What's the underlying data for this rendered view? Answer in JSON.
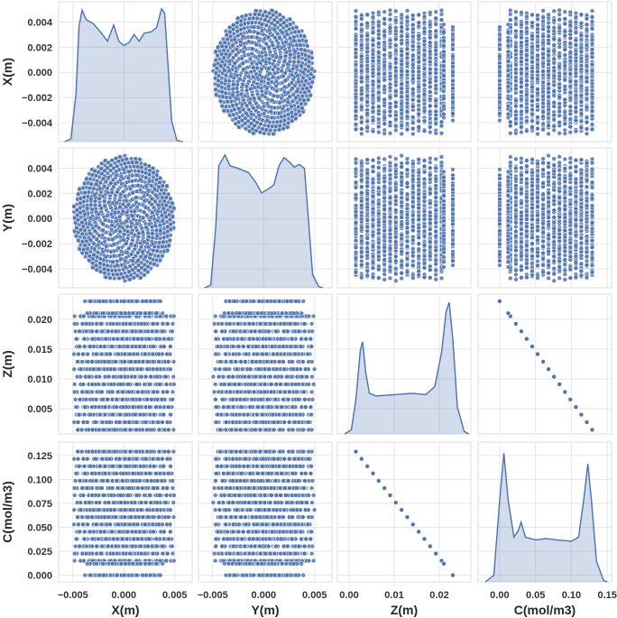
{
  "chart_data": {
    "type": "pairplot",
    "variables": [
      "X(m)",
      "Y(m)",
      "Z(m)",
      "C(mol/m3)"
    ],
    "grid": true,
    "color": "#4c72b0",
    "axes": {
      "X(m)": {
        "ticks": [
          -0.004,
          -0.002,
          0.0,
          0.002,
          0.004
        ],
        "tick_labels": [
          "−0.004",
          "−0.002",
          "0.000",
          "0.002",
          "0.004"
        ],
        "col_ticks": [
          -0.005,
          0.0,
          0.005
        ],
        "col_tick_labels": [
          "−0.005",
          "0.000",
          "0.005"
        ],
        "row_range": [
          -0.0055,
          0.0056
        ],
        "col_range": [
          -0.0064,
          0.0067
        ]
      },
      "Y(m)": {
        "ticks": [
          -0.004,
          -0.002,
          0.0,
          0.002,
          0.004
        ],
        "tick_labels": [
          "−0.004",
          "−0.002",
          "0.000",
          "0.002",
          "0.004"
        ],
        "col_ticks": [
          -0.005,
          0.0,
          0.005
        ],
        "col_tick_labels": [
          "−0.005",
          "0.000",
          "0.005"
        ],
        "row_range": [
          -0.0055,
          0.0056
        ],
        "col_range": [
          -0.0064,
          0.0067
        ]
      },
      "Z(m)": {
        "ticks": [
          0.005,
          0.01,
          0.015,
          0.02
        ],
        "tick_labels": [
          "0.005",
          "0.010",
          "0.015",
          "0.020"
        ],
        "col_ticks": [
          0.0,
          0.01,
          0.02
        ],
        "col_tick_labels": [
          "0.00",
          "0.01",
          "0.02"
        ],
        "row_range": [
          0.0008,
          0.0242
        ],
        "col_range": [
          -0.0026,
          0.027
        ]
      },
      "C(mol/m3)": {
        "ticks": [
          0.0,
          0.025,
          0.05,
          0.075,
          0.1,
          0.125
        ],
        "tick_labels": [
          "0.000",
          "0.025",
          "0.050",
          "0.075",
          "0.100",
          "0.125"
        ],
        "col_ticks": [
          0.0,
          0.05,
          0.1,
          0.15
        ],
        "col_tick_labels": [
          "0.00",
          "0.05",
          "0.10",
          "0.15"
        ],
        "row_range": [
          -0.007,
          0.139
        ],
        "col_range": [
          -0.03,
          0.156
        ]
      }
    },
    "scatter_model": {
      "radius_main": 0.005,
      "z_main": [
        0.0015,
        0.0205
      ],
      "radius_top": 0.0039,
      "z_top": [
        0.021,
        0.023
      ],
      "c_at_z": [
        [
          0.002,
          0.126
        ],
        [
          0.023,
          0.0
        ]
      ]
    },
    "kde": {
      "X(m)": [
        [
          -0.0058,
          0
        ],
        [
          -0.0052,
          0.02
        ],
        [
          -0.0047,
          0.35
        ],
        [
          -0.0044,
          0.85
        ],
        [
          -0.0041,
          0.97
        ],
        [
          -0.0037,
          0.9
        ],
        [
          -0.003,
          0.87
        ],
        [
          -0.0022,
          0.8
        ],
        [
          -0.0016,
          0.74
        ],
        [
          -0.001,
          0.86
        ],
        [
          -0.0005,
          0.74
        ],
        [
          0,
          0.71
        ],
        [
          0.0005,
          0.73
        ],
        [
          0.001,
          0.79
        ],
        [
          0.0015,
          0.74
        ],
        [
          0.002,
          0.8
        ],
        [
          0.0027,
          0.81
        ],
        [
          0.0032,
          0.84
        ],
        [
          0.0037,
          0.98
        ],
        [
          0.004,
          0.95
        ],
        [
          0.0043,
          0.6
        ],
        [
          0.0047,
          0.15
        ],
        [
          0.0052,
          0.01
        ],
        [
          0.0058,
          0
        ]
      ],
      "Y(m)": [
        [
          -0.0058,
          0
        ],
        [
          -0.0052,
          0.02
        ],
        [
          -0.0047,
          0.45
        ],
        [
          -0.0044,
          0.9
        ],
        [
          -0.0038,
          0.98
        ],
        [
          -0.0033,
          0.9
        ],
        [
          -0.0025,
          0.88
        ],
        [
          -0.0015,
          0.85
        ],
        [
          -0.0008,
          0.78
        ],
        [
          -0.0002,
          0.7
        ],
        [
          0.0005,
          0.73
        ],
        [
          0.001,
          0.76
        ],
        [
          0.0015,
          0.9
        ],
        [
          0.002,
          0.96
        ],
        [
          0.0025,
          0.93
        ],
        [
          0.003,
          0.89
        ],
        [
          0.0035,
          0.91
        ],
        [
          0.004,
          0.88
        ],
        [
          0.0044,
          0.5
        ],
        [
          0.0048,
          0.1
        ],
        [
          0.0054,
          0.01
        ],
        [
          0.0058,
          0
        ]
      ],
      "Z(m)": [
        [
          -0.001,
          0
        ],
        [
          0.0005,
          0.03
        ],
        [
          0.0015,
          0.25
        ],
        [
          0.0025,
          0.62
        ],
        [
          0.003,
          0.68
        ],
        [
          0.0037,
          0.45
        ],
        [
          0.0045,
          0.3
        ],
        [
          0.006,
          0.28
        ],
        [
          0.01,
          0.29
        ],
        [
          0.014,
          0.3
        ],
        [
          0.017,
          0.29
        ],
        [
          0.019,
          0.35
        ],
        [
          0.0205,
          0.6
        ],
        [
          0.0215,
          0.9
        ],
        [
          0.0222,
          0.97
        ],
        [
          0.023,
          0.7
        ],
        [
          0.024,
          0.2
        ],
        [
          0.0255,
          0.02
        ],
        [
          0.0265,
          0
        ]
      ],
      "C(mol/m3)": [
        [
          -0.02,
          0
        ],
        [
          -0.008,
          0.05
        ],
        [
          0.0,
          0.6
        ],
        [
          0.006,
          0.95
        ],
        [
          0.012,
          0.6
        ],
        [
          0.02,
          0.33
        ],
        [
          0.026,
          0.38
        ],
        [
          0.03,
          0.44
        ],
        [
          0.036,
          0.33
        ],
        [
          0.05,
          0.31
        ],
        [
          0.065,
          0.32
        ],
        [
          0.08,
          0.31
        ],
        [
          0.1,
          0.3
        ],
        [
          0.11,
          0.33
        ],
        [
          0.117,
          0.6
        ],
        [
          0.123,
          0.87
        ],
        [
          0.128,
          0.6
        ],
        [
          0.135,
          0.15
        ],
        [
          0.145,
          0.01
        ],
        [
          0.15,
          0
        ]
      ]
    }
  }
}
